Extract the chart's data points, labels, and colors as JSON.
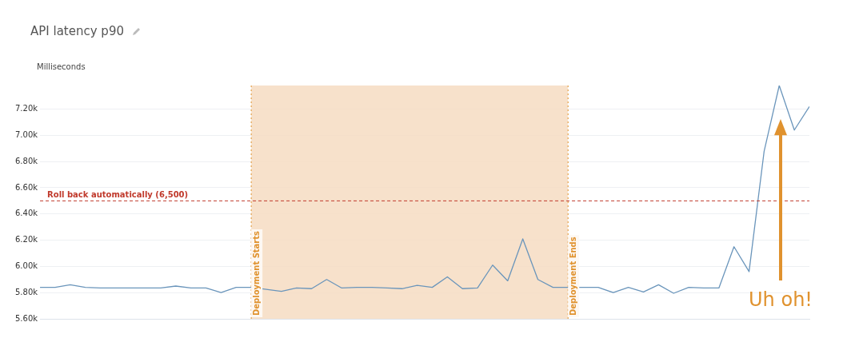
{
  "chart_data": {
    "type": "line",
    "title": "API latency p90",
    "ylabel": "Milliseconds",
    "categories": [
      null,
      null,
      null,
      null,
      null,
      null,
      null,
      null,
      null,
      null,
      null,
      null,
      null,
      null,
      null,
      null,
      null,
      null,
      null,
      null,
      null,
      null,
      null,
      null,
      null,
      null,
      null,
      null,
      null,
      null,
      null,
      null,
      null,
      null,
      null,
      null,
      null,
      null,
      null,
      null,
      null,
      null,
      null,
      null,
      null,
      null,
      null,
      null,
      null,
      null,
      null,
      null
    ],
    "series": [
      {
        "color": "#6a95bb",
        "values": [
          5840,
          5840,
          5860,
          5840,
          5835,
          5835,
          5835,
          5835,
          5835,
          5850,
          5835,
          5835,
          5800,
          5840,
          5840,
          5825,
          5810,
          5835,
          5830,
          5900,
          5835,
          5840,
          5840,
          5835,
          5830,
          5855,
          5840,
          5920,
          5830,
          5835,
          6010,
          5890,
          6210,
          5900,
          5840,
          5840,
          5840,
          5840,
          5800,
          5840,
          5805,
          5860,
          5795,
          5840,
          5835,
          5835,
          6150,
          5960,
          6880,
          7380,
          7040,
          7220
        ]
      }
    ],
    "ylim": [
      5600,
      7380
    ],
    "yticks": [
      {
        "value": 5600,
        "label": "5.60k"
      },
      {
        "value": 5800,
        "label": "5.80k"
      },
      {
        "value": 6000,
        "label": "6.00k"
      },
      {
        "value": 6200,
        "label": "6.20k"
      },
      {
        "value": 6400,
        "label": "6.40k"
      },
      {
        "value": 6600,
        "label": "6.60k"
      },
      {
        "value": 6800,
        "label": "6.80k"
      },
      {
        "value": 7000,
        "label": "7.00k"
      },
      {
        "value": 7200,
        "label": "7.20k"
      }
    ],
    "ref_lines": [
      {
        "axis": "y",
        "value": 6500,
        "label": "Roll back automatically (6,500)",
        "color": "#c0392b",
        "line_style": "dashed"
      }
    ],
    "annotations": [
      "Deployment Starts",
      "Deployment Ends",
      "Uh oh!"
    ],
    "grid": "y",
    "tick_labels": "y",
    "marker": "none",
    "line_style": "solid",
    "legend": false
  }
}
